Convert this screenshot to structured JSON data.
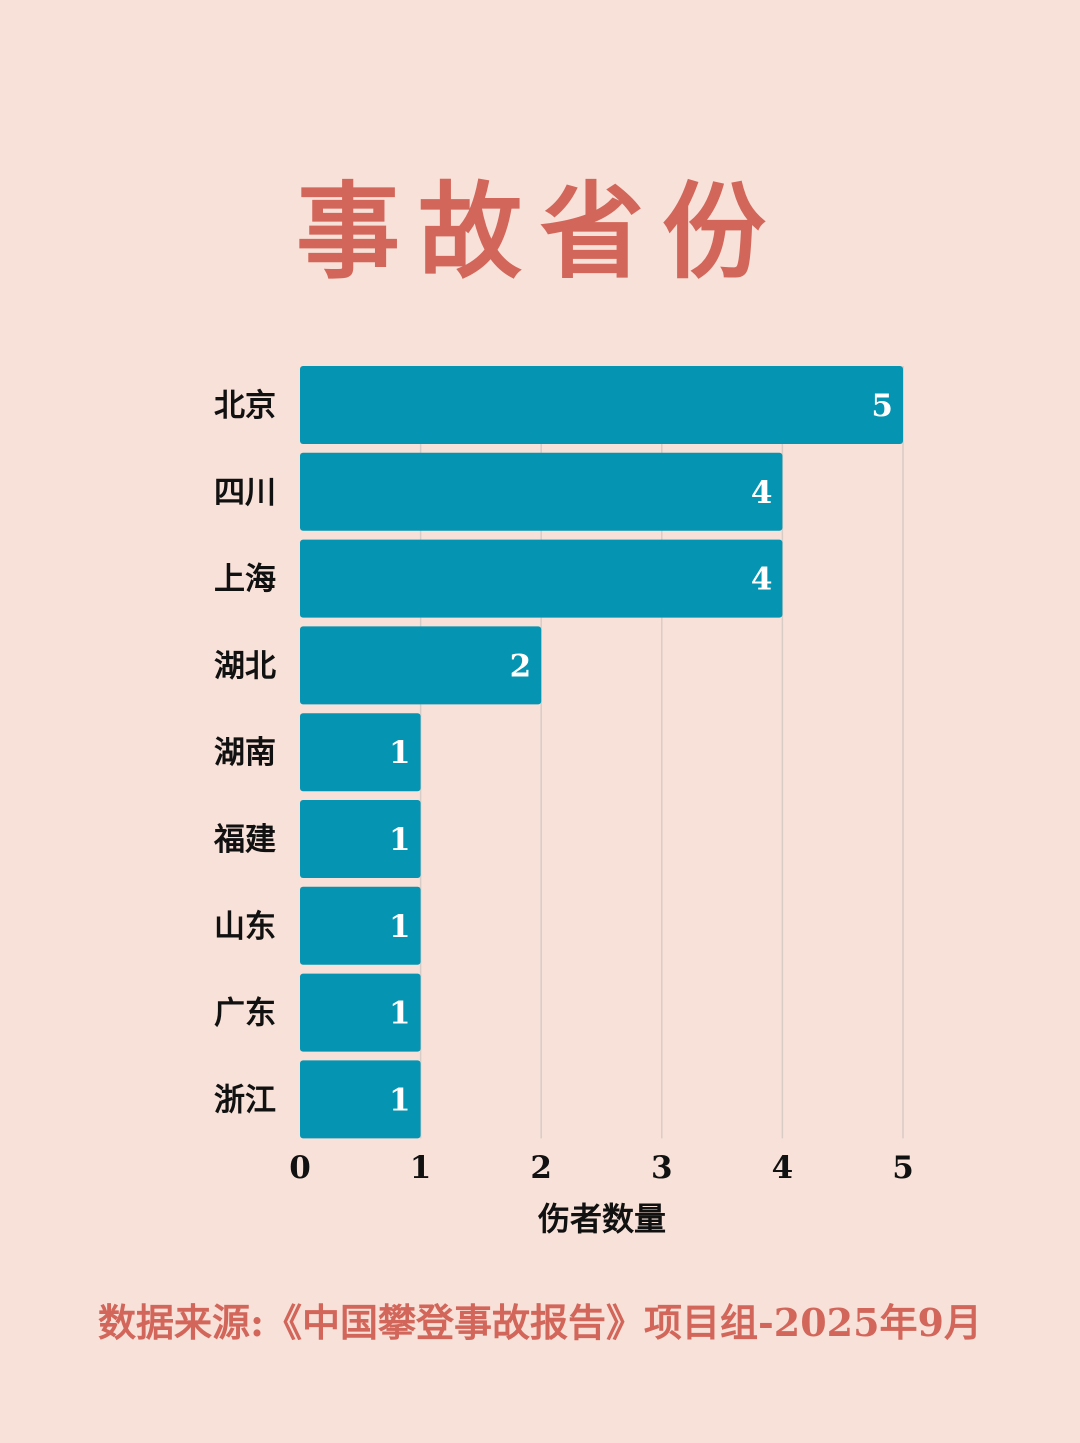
{
  "title": "事故省份",
  "source": "数据来源:《中国攀登事故报告》项目组-2025年9月",
  "colors": {
    "background": "#f8e1d8",
    "bar": "#0595b2",
    "accent": "#d2665a",
    "grid": "#d9cbc6",
    "axis_text": "#111111",
    "value_text": "#ffffff"
  },
  "chart_data": {
    "type": "bar",
    "orientation": "horizontal",
    "categories": [
      "北京",
      "四川",
      "上海",
      "湖北",
      "湖南",
      "福建",
      "山东",
      "广东",
      "浙江"
    ],
    "values": [
      5,
      4,
      4,
      2,
      1,
      1,
      1,
      1,
      1
    ],
    "xlabel": "伤者数量",
    "xlim": [
      0,
      5
    ],
    "xticks": [
      0,
      1,
      2,
      3,
      4,
      5
    ],
    "grid": "vertical",
    "data_labels": true
  }
}
